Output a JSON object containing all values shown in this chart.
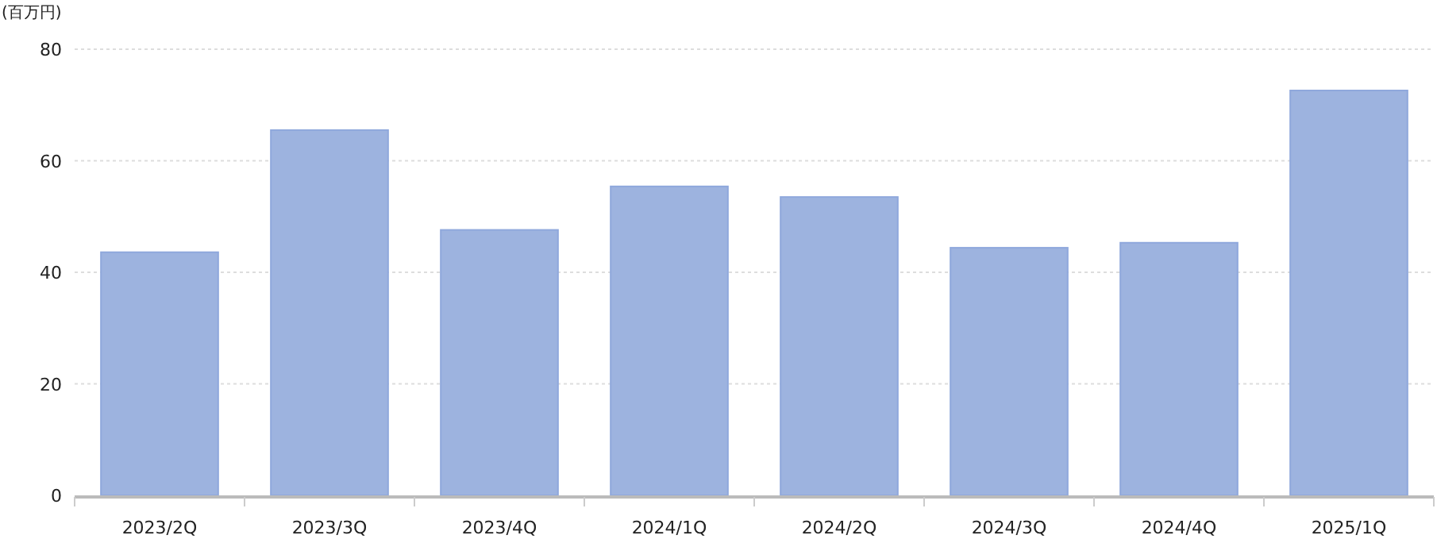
{
  "chart_data": {
    "type": "bar",
    "ylabel": "(百万円)",
    "categories": [
      "2023/2Q",
      "2023/3Q",
      "2023/4Q",
      "2024/1Q",
      "2024/2Q",
      "2024/3Q",
      "2024/4Q",
      "2025/1Q"
    ],
    "values": [
      43.6,
      65.5,
      47.6,
      55.4,
      53.5,
      44.4,
      45.3,
      72.6
    ],
    "color": "#9db3df",
    "ylim": [
      0,
      80
    ],
    "yticks": [
      0,
      20,
      40,
      60,
      80
    ],
    "grid": "y"
  }
}
